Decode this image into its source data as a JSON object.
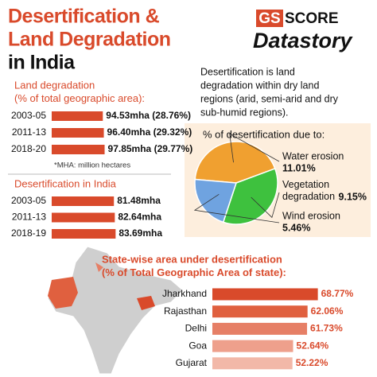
{
  "header": {
    "title_lines": [
      "Desertification &",
      "Land Degradation",
      "in India"
    ],
    "logo": {
      "gs": "GS",
      "score": "SCORE",
      "datastory": "Datastory"
    }
  },
  "definition": [
    "Desertification is land",
    "degradation within dry land",
    "regions (arid, semi-arid and dry",
    "sub-humid regions)."
  ],
  "chart_data": [
    {
      "type": "bar",
      "orientation": "horizontal",
      "title": [
        "Land degradation",
        "(% of total geographic area):"
      ],
      "categories": [
        "2003-05",
        "2011-13",
        "2018-20"
      ],
      "values": [
        94.53,
        96.4,
        97.85
      ],
      "value_labels": [
        "94.53mha (28.76%)",
        "96.40mha (29.32%)",
        "97.85mha (29.77%)"
      ],
      "color": "#d94a2b",
      "xlim": [
        0,
        100
      ],
      "note": "*MHA: million hectares"
    },
    {
      "type": "bar",
      "orientation": "horizontal",
      "title": [
        "Desertification in India"
      ],
      "categories": [
        "2003-05",
        "2011-13",
        "2018-19"
      ],
      "values": [
        81.48,
        82.64,
        83.69
      ],
      "value_labels": [
        "81.48mha",
        "82.64mha",
        "83.69mha"
      ],
      "color": "#d94a2b",
      "xlim": [
        0,
        100
      ]
    },
    {
      "type": "pie",
      "title": [
        "% of desertification due to:"
      ],
      "categories": [
        "Water erosion",
        "Vegetation degradation",
        "Wind erosion"
      ],
      "values": [
        11.01,
        9.15,
        5.46
      ],
      "value_labels": [
        "11.01%",
        "9.15%",
        "5.46%"
      ],
      "colors": [
        "#f0a030",
        "#3ec13e",
        "#6fa3e0"
      ]
    },
    {
      "type": "bar",
      "orientation": "horizontal",
      "title": [
        "State-wise area under desertification",
        "(% of Total Geographic Area of state):"
      ],
      "categories": [
        "Jharkhand",
        "Rajasthan",
        "Delhi",
        "Goa",
        "Gujarat"
      ],
      "values": [
        68.77,
        62.06,
        61.73,
        52.64,
        52.22
      ],
      "value_labels": [
        "68.77%",
        "62.06%",
        "61.73%",
        "52.64%",
        "52.22%"
      ],
      "colors": [
        "#d94a2b",
        "#e0603f",
        "#e67f66",
        "#eea08c",
        "#f2b8a8"
      ],
      "xlim": [
        0,
        70
      ]
    }
  ]
}
